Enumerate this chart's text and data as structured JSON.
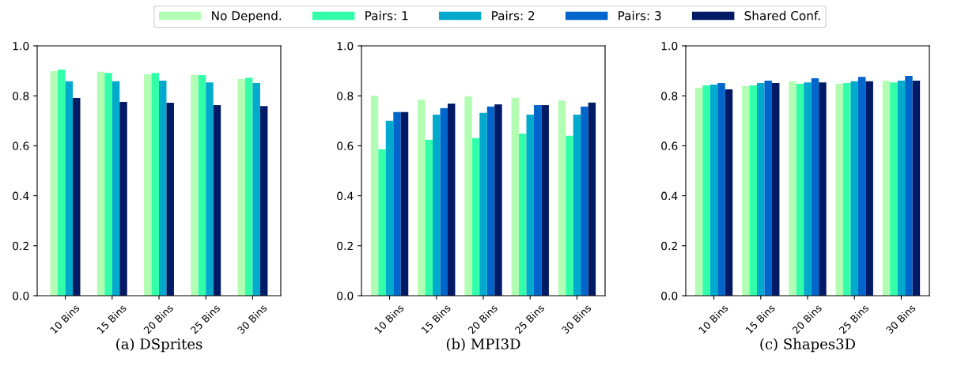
{
  "chart_data": [
    {
      "type": "bar",
      "xlabel": "(a) DSprites",
      "categories": [
        "10 Bins",
        "15 Bins",
        "20 Bins",
        "25 Bins",
        "30 Bins"
      ],
      "ylim": [
        0,
        1
      ],
      "yticks": [
        {
          "value": 0,
          "label": "0.0"
        },
        {
          "value": 0.2,
          "label": "0.2"
        },
        {
          "value": 0.4,
          "label": "0.4"
        },
        {
          "value": 0.6,
          "label": "0.6"
        },
        {
          "value": 0.8,
          "label": "0.8"
        },
        {
          "value": 1,
          "label": "1.0"
        }
      ],
      "grid": false,
      "series": [
        {
          "color": "#b3fcb3",
          "values": [
            0.899,
            0.896,
            0.886,
            0.883,
            0.867
          ]
        },
        {
          "color": "#33ffaa",
          "values": [
            0.905,
            0.892,
            0.892,
            0.883,
            0.873
          ]
        },
        {
          "color": "#00aacc",
          "values": [
            0.858,
            0.858,
            0.861,
            0.854,
            0.851
          ]
        },
        {
          "color": "#001a66",
          "values": [
            0.791,
            0.775,
            0.772,
            0.763,
            0.759
          ]
        }
      ]
    },
    {
      "type": "bar",
      "xlabel": "(b) MPI3D",
      "categories": [
        "10 Bins",
        "15 Bins",
        "20 Bins",
        "25 Bins",
        "30 Bins"
      ],
      "ylim": [
        0,
        1
      ],
      "yticks": [
        {
          "value": 0,
          "label": "0.0"
        },
        {
          "value": 0.2,
          "label": "0.2"
        },
        {
          "value": 0.4,
          "label": "0.4"
        },
        {
          "value": 0.6,
          "label": "0.6"
        },
        {
          "value": 0.8,
          "label": "0.8"
        },
        {
          "value": 1,
          "label": "1.0"
        }
      ],
      "legend": "top",
      "grid": false,
      "series": [
        {
          "name": "No Depend.",
          "color": "#b3fcb3",
          "values": [
            0.801,
            0.785,
            0.798,
            0.792,
            0.782
          ]
        },
        {
          "name": "Pairs: 1",
          "color": "#33ffaa",
          "values": [
            0.586,
            0.624,
            0.631,
            0.649,
            0.64
          ]
        },
        {
          "name": "Pairs: 2",
          "color": "#00aacc",
          "values": [
            0.7,
            0.725,
            0.732,
            0.725,
            0.725
          ]
        },
        {
          "name": "Pairs: 3",
          "color": "#0066cc",
          "values": [
            0.735,
            0.751,
            0.757,
            0.763,
            0.757
          ]
        },
        {
          "name": "Shared Conf.",
          "color": "#001a66",
          "values": [
            0.735,
            0.769,
            0.766,
            0.763,
            0.773
          ]
        }
      ]
    },
    {
      "type": "bar",
      "xlabel": "(c) Shapes3D",
      "categories": [
        "10 Bins",
        "15 Bins",
        "20 Bins",
        "25 Bins",
        "30 Bins"
      ],
      "ylim": [
        0,
        1
      ],
      "yticks": [
        {
          "value": 0,
          "label": "0.0"
        },
        {
          "value": 0.2,
          "label": "0.2"
        },
        {
          "value": 0.4,
          "label": "0.4"
        },
        {
          "value": 0.6,
          "label": "0.6"
        },
        {
          "value": 0.8,
          "label": "0.8"
        },
        {
          "value": 1,
          "label": "1.0"
        }
      ],
      "grid": false,
      "series": [
        {
          "color": "#b3fcb3",
          "values": [
            0.832,
            0.839,
            0.858,
            0.848,
            0.861
          ]
        },
        {
          "color": "#33ffaa",
          "values": [
            0.842,
            0.842,
            0.848,
            0.851,
            0.854
          ]
        },
        {
          "color": "#00aacc",
          "values": [
            0.845,
            0.851,
            0.854,
            0.858,
            0.861
          ]
        },
        {
          "color": "#0066cc",
          "values": [
            0.851,
            0.861,
            0.87,
            0.876,
            0.88
          ]
        },
        {
          "color": "#001a66",
          "values": [
            0.826,
            0.851,
            0.854,
            0.858,
            0.861
          ]
        }
      ]
    }
  ]
}
